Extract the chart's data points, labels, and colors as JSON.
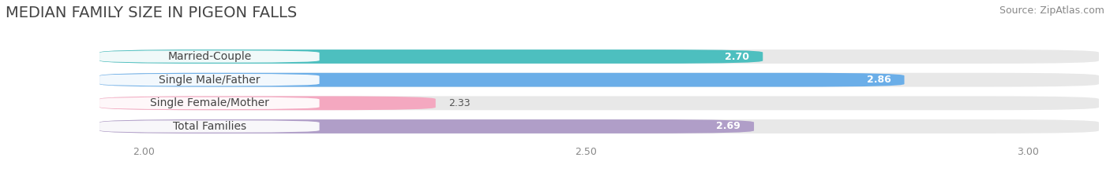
{
  "title": "MEDIAN FAMILY SIZE IN PIGEON FALLS",
  "source": "Source: ZipAtlas.com",
  "categories": [
    "Married-Couple",
    "Single Male/Father",
    "Single Female/Mother",
    "Total Families"
  ],
  "values": [
    2.7,
    2.86,
    2.33,
    2.69
  ],
  "bar_colors": [
    "#4dbfbf",
    "#6baee8",
    "#f4a8c0",
    "#b09ec8"
  ],
  "value_colors": [
    "white",
    "white",
    "#555555",
    "white"
  ],
  "xlim": [
    1.85,
    3.08
  ],
  "xstart": 1.95,
  "xticks": [
    2.0,
    2.5,
    3.0
  ],
  "xtick_labels": [
    "2.00",
    "2.50",
    "3.00"
  ],
  "background_color": "#ffffff",
  "bar_bg_color": "#e8e8e8",
  "title_fontsize": 14,
  "label_fontsize": 10,
  "value_fontsize": 9,
  "source_fontsize": 9,
  "bar_height": 0.6,
  "bar_gap": 0.38
}
